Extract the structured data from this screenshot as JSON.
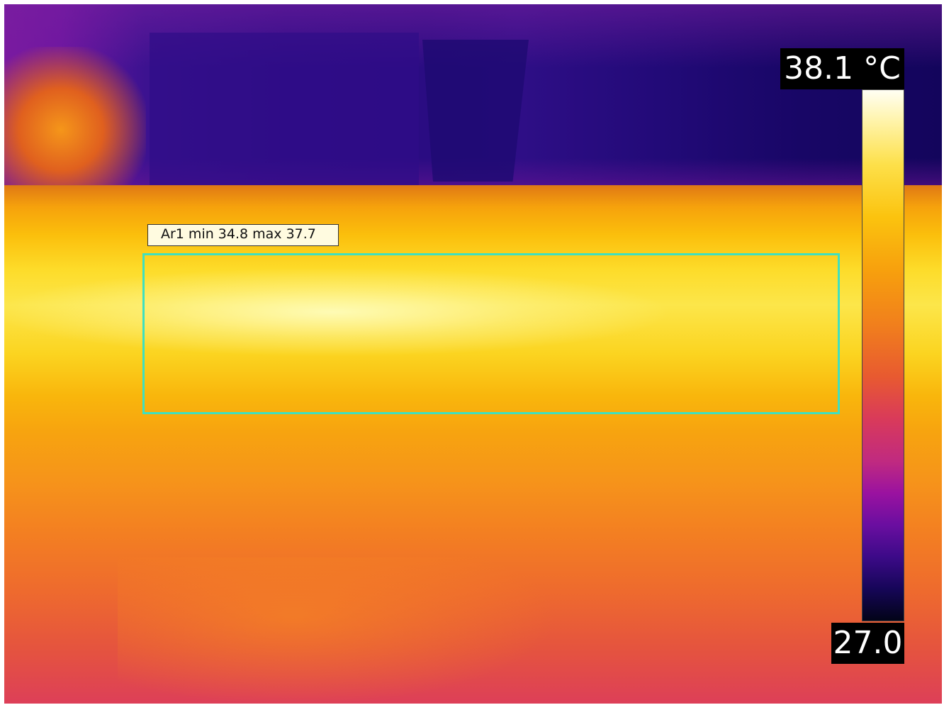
{
  "measurement": {
    "area_label": "Ar1 min 34.8 max 37.7",
    "roi_color": "#3ee0c0"
  },
  "color_scale": {
    "max_label": "38.1 °C",
    "min_label": "27.0",
    "max_value": 38.1,
    "min_value": 27.0,
    "unit": "°C",
    "palette": "iron"
  }
}
